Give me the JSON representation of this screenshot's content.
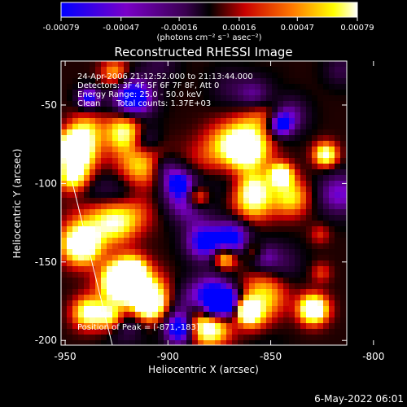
{
  "chart_data": {
    "type": "heatmap",
    "title": "Reconstructed RHESSI Image",
    "xlabel": "Heliocentric X (arcsec)",
    "ylabel": "Heliocentric Y (arcsec)",
    "xlim": [
      -952,
      -813
    ],
    "ylim": [
      -203,
      -22
    ],
    "x_ticks": [
      "-950",
      "-900",
      "-850",
      "-800"
    ],
    "x_tick_values": [
      -950,
      -900,
      -850,
      -800
    ],
    "y_ticks": [
      "-50",
      "-100",
      "-150",
      "-200"
    ],
    "y_tick_values": [
      -50,
      -100,
      -150,
      -200
    ],
    "colorbar": {
      "ticks": [
        "-0.00079",
        "-0.00047",
        "-0.00016",
        "0.00016",
        "0.00047",
        "0.00079"
      ],
      "tick_values": [
        -0.00079,
        -0.00047,
        -0.00016,
        0.00016,
        0.00047,
        0.00079
      ],
      "range": [
        -0.00079,
        0.00079
      ],
      "colors": [
        "#0000ff",
        "#7a00c8",
        "#3a0050",
        "#000000",
        "#c80000",
        "#ff7800",
        "#ffff00",
        "#ffffff"
      ]
    },
    "colorbar_unit": "(photons cm⁻² s⁻¹ asec⁻²)",
    "annotations": {
      "time": "24-Apr-2006 21:12:52.000 to 21:13:44.000",
      "detectors": "Detectors: 3F 4F 5F 6F 7F 8F, Att 0",
      "energy": "Energy Range: 25.0 - 50.0 keV",
      "algorithm": "Clean",
      "counts": "Total counts: 1.37E+03",
      "peak": "Position of Peak = [-871,-183]"
    },
    "peak": [
      -871,
      -183
    ]
  },
  "footer": {
    "date": "6-May-2022 06:01"
  }
}
